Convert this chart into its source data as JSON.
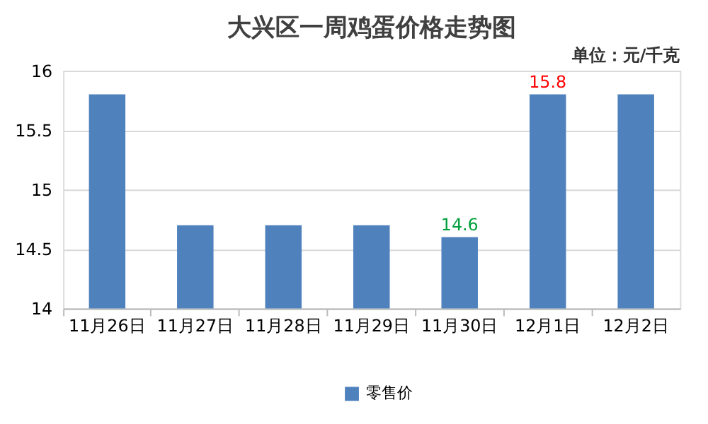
{
  "chart_data": {
    "type": "bar",
    "title": "大兴区一周鸡蛋价格走势图",
    "subtitle": "单位：元/千克",
    "categories": [
      "11月26日",
      "11月27日",
      "11月28日",
      "11月29日",
      "11月30日",
      "12月1日",
      "12月2日"
    ],
    "series": [
      {
        "name": "零售价",
        "color": "#4f81bd",
        "values": [
          15.8,
          14.7,
          14.7,
          14.7,
          14.6,
          15.8,
          15.8
        ],
        "value_labels": [
          null,
          null,
          null,
          null,
          "14.6",
          "15.8",
          null
        ]
      }
    ],
    "ylim": [
      14,
      16
    ],
    "yticks": [
      14,
      14.5,
      15,
      15.5,
      16
    ],
    "grid": "y",
    "legend": "bottom"
  }
}
